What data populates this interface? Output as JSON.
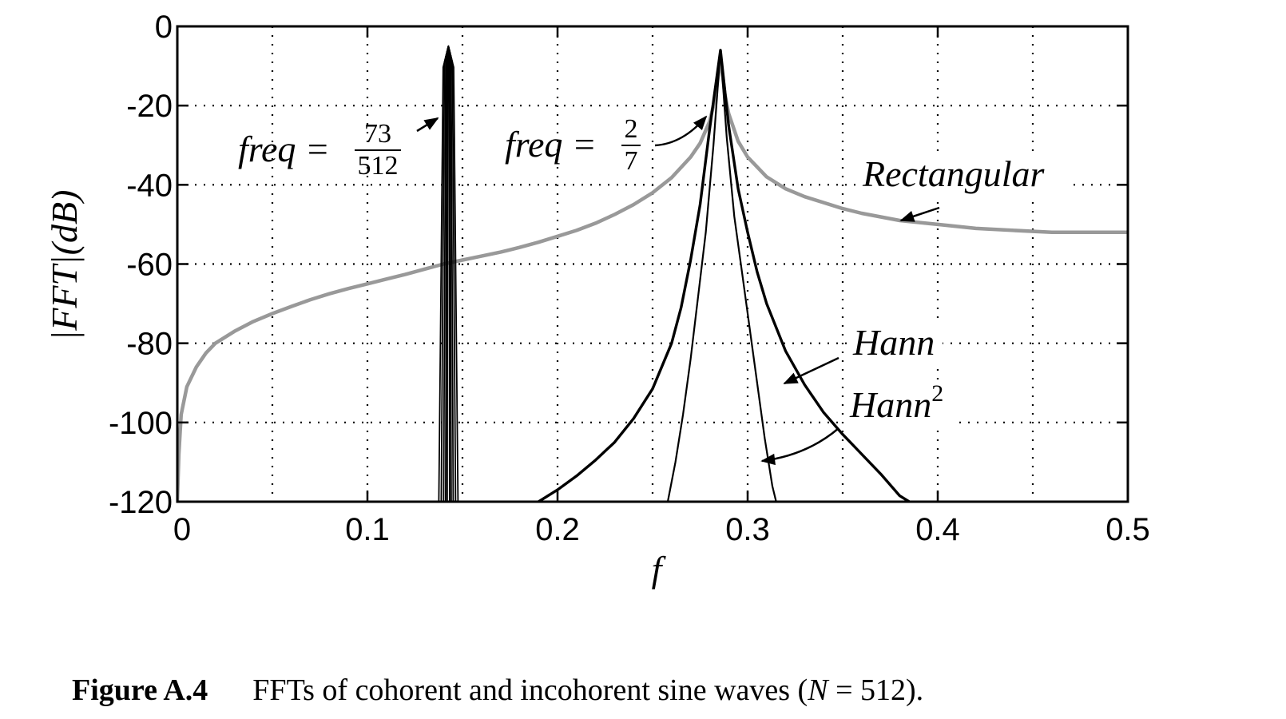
{
  "chart_data": {
    "type": "line",
    "xlabel": "f",
    "ylabel": "|FFT|(dB)",
    "xlim": [
      0,
      0.5
    ],
    "ylim": [
      -120,
      0
    ],
    "x_ticks": [
      "0",
      "0.1",
      "0.2",
      "0.3",
      "0.4",
      "0.5"
    ],
    "y_ticks": [
      "0",
      "-20",
      "-40",
      "-60",
      "-80",
      "-100",
      "-120"
    ],
    "grid": true,
    "annotations": {
      "coherent": {
        "prefix": "freq =",
        "num": "73",
        "den": "512"
      },
      "incoherent": {
        "prefix": "freq =",
        "num": "2",
        "den": "7"
      },
      "rectangular": "Rectangular",
      "hann": "Hann",
      "hann2_base": "Hann",
      "hann2_sup": "2"
    },
    "series": [
      {
        "name": "Rectangular",
        "color": "#999999",
        "points": [
          [
            0.0,
            -120
          ],
          [
            0.0008,
            -108
          ],
          [
            0.002,
            -98
          ],
          [
            0.005,
            -91
          ],
          [
            0.01,
            -86
          ],
          [
            0.015,
            -82.5
          ],
          [
            0.02,
            -80
          ],
          [
            0.03,
            -77
          ],
          [
            0.04,
            -74.5
          ],
          [
            0.05,
            -72.5
          ],
          [
            0.06,
            -70.7
          ],
          [
            0.07,
            -69
          ],
          [
            0.08,
            -67.5
          ],
          [
            0.09,
            -66.2
          ],
          [
            0.1,
            -65
          ],
          [
            0.11,
            -63.8
          ],
          [
            0.12,
            -62.6
          ],
          [
            0.13,
            -61.3
          ],
          [
            0.14,
            -60
          ],
          [
            0.15,
            -59
          ],
          [
            0.16,
            -58
          ],
          [
            0.17,
            -57
          ],
          [
            0.18,
            -55.8
          ],
          [
            0.19,
            -54.5
          ],
          [
            0.2,
            -53
          ],
          [
            0.21,
            -51.5
          ],
          [
            0.22,
            -49.7
          ],
          [
            0.23,
            -47.5
          ],
          [
            0.24,
            -45
          ],
          [
            0.25,
            -42
          ],
          [
            0.26,
            -38.2
          ],
          [
            0.27,
            -33
          ],
          [
            0.275,
            -29.5
          ],
          [
            0.28,
            -24
          ],
          [
            0.283,
            -18
          ],
          [
            0.2857,
            -8
          ],
          [
            0.288,
            -17
          ],
          [
            0.29,
            -22
          ],
          [
            0.295,
            -29
          ],
          [
            0.3,
            -33
          ],
          [
            0.31,
            -38
          ],
          [
            0.32,
            -41
          ],
          [
            0.33,
            -43
          ],
          [
            0.34,
            -44.5
          ],
          [
            0.35,
            -46
          ],
          [
            0.36,
            -47.2
          ],
          [
            0.38,
            -49
          ],
          [
            0.4,
            -50
          ],
          [
            0.42,
            -51
          ],
          [
            0.44,
            -51.5
          ],
          [
            0.46,
            -52
          ],
          [
            0.48,
            -52
          ],
          [
            0.5,
            -52
          ]
        ]
      },
      {
        "name": "Hann",
        "color": "#000000",
        "points": [
          [
            0.19,
            -120
          ],
          [
            0.2,
            -117
          ],
          [
            0.21,
            -113.5
          ],
          [
            0.22,
            -109.5
          ],
          [
            0.23,
            -105
          ],
          [
            0.24,
            -99
          ],
          [
            0.25,
            -91.5
          ],
          [
            0.26,
            -80
          ],
          [
            0.265,
            -71
          ],
          [
            0.27,
            -59
          ],
          [
            0.275,
            -45
          ],
          [
            0.28,
            -26
          ],
          [
            0.2857,
            -6
          ],
          [
            0.29,
            -25
          ],
          [
            0.295,
            -41
          ],
          [
            0.3,
            -52
          ],
          [
            0.305,
            -62
          ],
          [
            0.31,
            -70
          ],
          [
            0.32,
            -82
          ],
          [
            0.33,
            -90.5
          ],
          [
            0.34,
            -97.5
          ],
          [
            0.35,
            -103
          ],
          [
            0.36,
            -108
          ],
          [
            0.37,
            -113
          ],
          [
            0.38,
            -118.5
          ],
          [
            0.385,
            -120
          ]
        ]
      },
      {
        "name": "Hann2",
        "color": "#000000",
        "points": [
          [
            0.258,
            -120
          ],
          [
            0.262,
            -110
          ],
          [
            0.266,
            -98
          ],
          [
            0.27,
            -84
          ],
          [
            0.274,
            -68
          ],
          [
            0.278,
            -52
          ],
          [
            0.282,
            -30
          ],
          [
            0.2857,
            -6
          ],
          [
            0.289,
            -28
          ],
          [
            0.293,
            -48
          ],
          [
            0.297,
            -62
          ],
          [
            0.301,
            -76
          ],
          [
            0.305,
            -90
          ],
          [
            0.309,
            -104
          ],
          [
            0.313,
            -116
          ],
          [
            0.315,
            -120
          ]
        ]
      },
      {
        "name": "Coherent",
        "color": "#000000",
        "center": 0.1426,
        "peak": -5
      }
    ]
  },
  "caption": {
    "label": "Figure A.4",
    "text_before": "FFTs of cohorent and incohorent sine waves (",
    "var": "N",
    "text_after": " = 512)."
  }
}
